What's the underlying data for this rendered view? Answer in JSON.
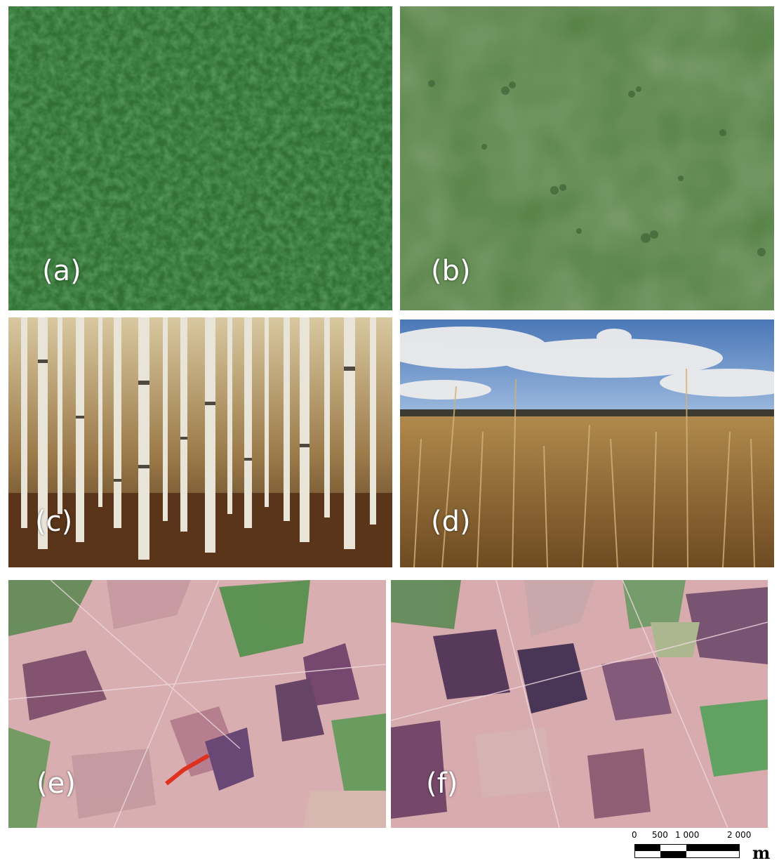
{
  "panels": [
    {
      "id": "a",
      "label": "(a)"
    },
    {
      "id": "b",
      "label": "(b)"
    },
    {
      "id": "c",
      "label": "(c)"
    },
    {
      "id": "d",
      "label": "(d)"
    },
    {
      "id": "e",
      "label": "(e)"
    },
    {
      "id": "f",
      "label": "(f)"
    }
  ],
  "scale_bar": {
    "ticks": [
      "0",
      "500",
      "1 000",
      "2 000"
    ],
    "unit": "m"
  },
  "colors": {
    "forest_canopy": "#2d6a2f",
    "meadow": "#4e7c3f",
    "birch_floor": "#5a3f22",
    "reed_grass": "#9c7a3e",
    "satellite_field": "#d7a9a7",
    "burn_scar": "#4a2e52"
  }
}
